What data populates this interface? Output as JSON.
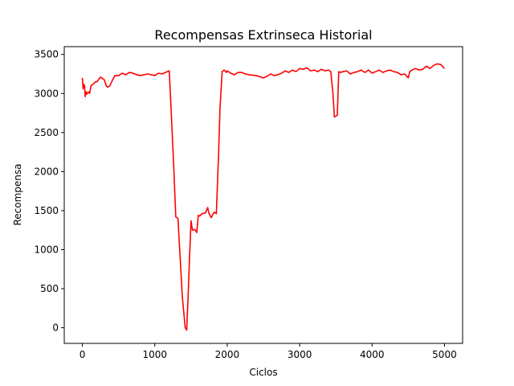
{
  "chart_data": {
    "type": "line",
    "title": "Recompensas Extrinseca Historial",
    "xlabel": "Ciclos",
    "ylabel": "Recompensa",
    "xlim": [
      -250,
      5250
    ],
    "ylim": [
      -200,
      3600
    ],
    "xticks": [
      0,
      1000,
      2000,
      3000,
      4000,
      5000
    ],
    "yticks": [
      0,
      500,
      1000,
      1500,
      2000,
      2500,
      3000,
      3500
    ],
    "grid": false,
    "series_color": "#ff0000",
    "series": [
      {
        "x": [
          0,
          10,
          20,
          30,
          40,
          50,
          60,
          70,
          80,
          100,
          120,
          150,
          180,
          200,
          250,
          300,
          330,
          350,
          380,
          420,
          450,
          500,
          550,
          600,
          650,
          700,
          750,
          800,
          900,
          1000,
          1050,
          1100,
          1150,
          1200,
          1230,
          1260,
          1290,
          1320,
          1350,
          1380,
          1420,
          1440,
          1460,
          1480,
          1500,
          1520,
          1550,
          1580,
          1600,
          1620,
          1650,
          1700,
          1730,
          1750,
          1780,
          1820,
          1850,
          1880,
          1900,
          1930,
          1960,
          1990,
          2000,
          2050,
          2100,
          2150,
          2200,
          2250,
          2300,
          2400,
          2500,
          2550,
          2600,
          2650,
          2700,
          2750,
          2800,
          2850,
          2900,
          2950,
          3000,
          3050,
          3100,
          3150,
          3200,
          3250,
          3300,
          3350,
          3400,
          3430,
          3460,
          3480,
          3500,
          3520,
          3540,
          3560,
          3600,
          3650,
          3700,
          3750,
          3800,
          3850,
          3900,
          3950,
          4000,
          4050,
          4100,
          4150,
          4200,
          4250,
          4300,
          4350,
          4400,
          4450,
          4500,
          4520,
          4550,
          4600,
          4650,
          4700,
          4750,
          4800,
          4850,
          4900,
          4950,
          4980,
          5000
        ],
        "y": [
          3200,
          3060,
          3120,
          3100,
          2960,
          3020,
          2990,
          3010,
          3020,
          3000,
          3100,
          3120,
          3150,
          3150,
          3210,
          3180,
          3100,
          3080,
          3100,
          3180,
          3230,
          3230,
          3260,
          3240,
          3270,
          3260,
          3240,
          3230,
          3250,
          3230,
          3260,
          3250,
          3270,
          3290,
          2700,
          2100,
          1420,
          1400,
          900,
          400,
          0,
          -30,
          400,
          900,
          1370,
          1250,
          1260,
          1220,
          1440,
          1430,
          1460,
          1470,
          1540,
          1460,
          1410,
          1480,
          1460,
          2200,
          2800,
          3280,
          3300,
          3270,
          3290,
          3260,
          3240,
          3270,
          3270,
          3250,
          3240,
          3230,
          3200,
          3220,
          3250,
          3230,
          3240,
          3260,
          3290,
          3270,
          3300,
          3280,
          3320,
          3310,
          3330,
          3290,
          3300,
          3280,
          3310,
          3290,
          3300,
          3280,
          3000,
          2700,
          2710,
          2720,
          3280,
          3270,
          3280,
          3290,
          3250,
          3270,
          3280,
          3300,
          3270,
          3300,
          3260,
          3280,
          3300,
          3270,
          3290,
          3300,
          3280,
          3270,
          3240,
          3250,
          3200,
          3280,
          3300,
          3320,
          3300,
          3310,
          3350,
          3320,
          3360,
          3380,
          3370,
          3340,
          3320
        ]
      }
    ]
  }
}
